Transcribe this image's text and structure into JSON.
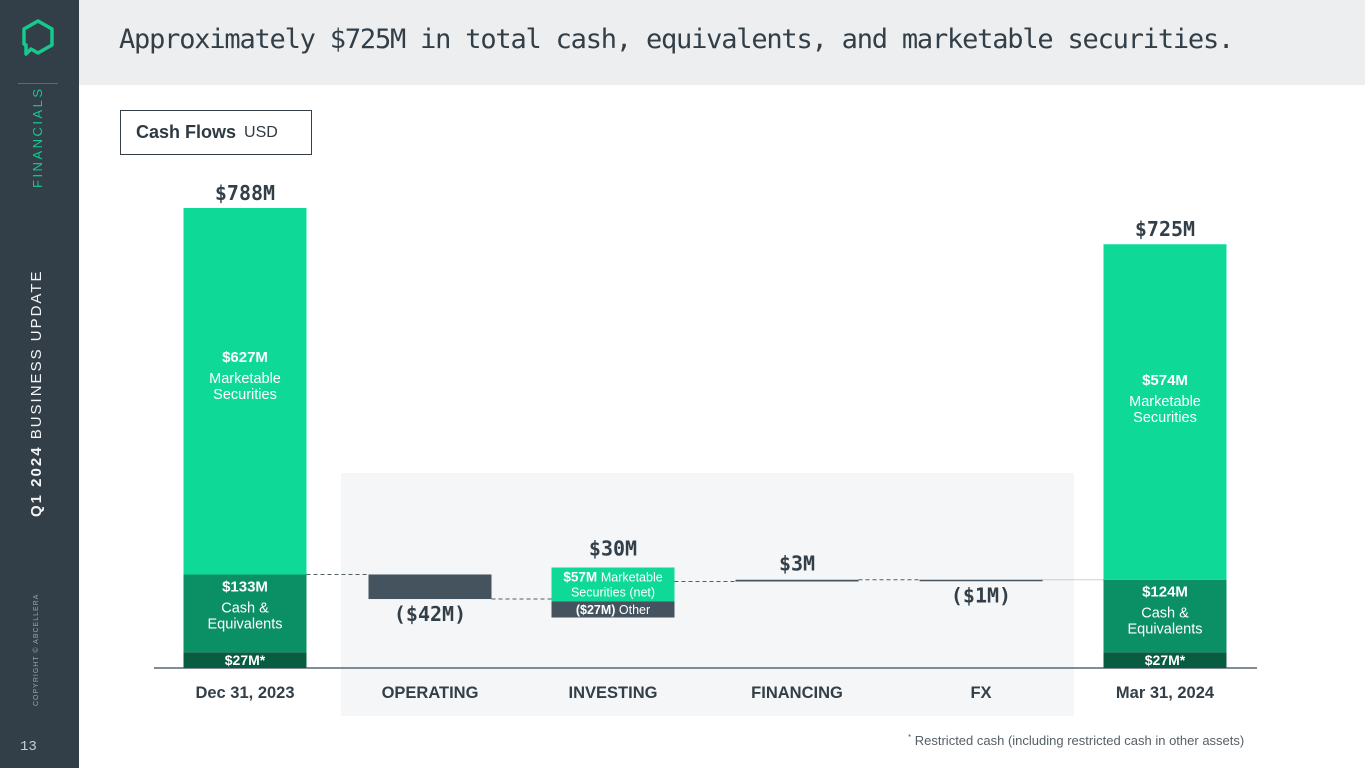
{
  "title": "Approximately $725M in total cash, equivalents, and marketable securities.",
  "sidebar": {
    "section": "FINANCIALS",
    "update_bold": "Q1 2024",
    "update_rest": "BUSINESS UPDATE",
    "copyright": "COPYRIGHT © ABCELLERA",
    "page_number": "13"
  },
  "cash_flows_label": {
    "title": "Cash Flows",
    "unit": "USD"
  },
  "footnote": "Restricted cash (including restricted cash in other assets)",
  "colors": {
    "marketable": "#0ed997",
    "cash": "#0b8f64",
    "restricted": "#085c40",
    "negative": "#44535e",
    "panel": "#f4f6f7",
    "sidebar": "#333f48",
    "accent": "#16c98d"
  },
  "chart_data": {
    "type": "waterfall",
    "unit": "USD millions",
    "categories": [
      "Dec 31, 2023",
      "OPERATING",
      "INVESTING",
      "FINANCING",
      "FX",
      "Mar 31, 2024"
    ],
    "start": {
      "category": "Dec 31, 2023",
      "total_label": "$788M",
      "total": 788,
      "segments": [
        {
          "name": "Restricted cash",
          "value": 27,
          "label": "$27M*",
          "caption": ""
        },
        {
          "name": "Cash & Equivalents",
          "value": 133,
          "label": "$133M",
          "caption": "Cash & Equivalents"
        },
        {
          "name": "Marketable Securities",
          "value": 627,
          "label": "$627M",
          "caption": "Marketable Securities"
        }
      ]
    },
    "changes": [
      {
        "category": "OPERATING",
        "value": -42,
        "label": "($42M)"
      },
      {
        "category": "INVESTING",
        "value": 30,
        "label": "$30M",
        "components": [
          {
            "value": 57,
            "label_bold": "$57M",
            "label_text": "Marketable Securities (net)"
          },
          {
            "value": -27,
            "label_bold": "($27M)",
            "label_text": "Other"
          }
        ]
      },
      {
        "category": "FINANCING",
        "value": 3,
        "label": "$3M"
      },
      {
        "category": "FX",
        "value": -1,
        "label": "($1M)"
      }
    ],
    "end": {
      "category": "Mar 31, 2024",
      "total_label": "$725M",
      "total": 725,
      "segments": [
        {
          "name": "Restricted cash",
          "value": 27,
          "label": "$27M*",
          "caption": ""
        },
        {
          "name": "Cash & Equivalents",
          "value": 124,
          "label": "$124M",
          "caption": "Cash & Equivalents"
        },
        {
          "name": "Marketable Securities",
          "value": 574,
          "label": "$574M",
          "caption": "Marketable Securities"
        }
      ]
    }
  }
}
